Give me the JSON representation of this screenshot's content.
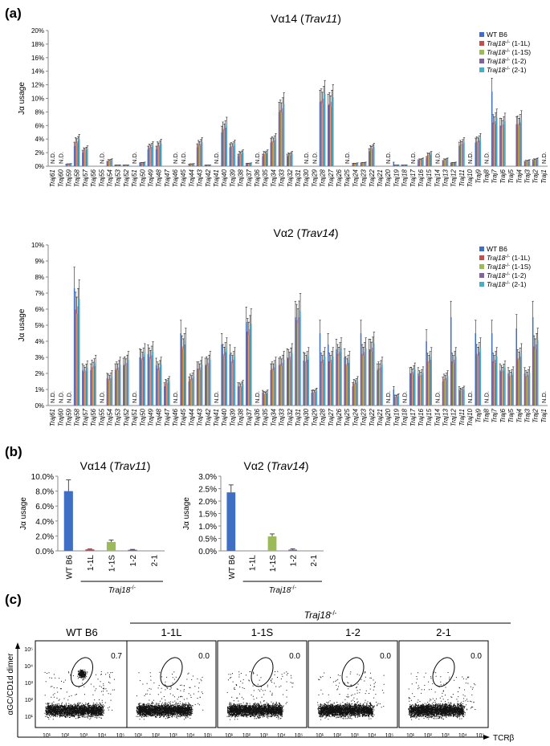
{
  "panel_labels": {
    "a": "(a)",
    "b": "(b)",
    "c": "(c)"
  },
  "colors": {
    "WT B6": "#3f6fc4",
    "1-1L": "#c0504d",
    "1-1S": "#9bbb59",
    "1-2": "#8064a2",
    "2-1": "#4bacc6"
  },
  "chart_data": [
    {
      "id": "a1",
      "type": "bar",
      "title": "Vα14 (Trav11)",
      "title_main": "Vα14 (",
      "title_italic": "Trav11",
      "title_tail": ")",
      "ylabel": "Jα usage",
      "ylim": [
        0,
        20
      ],
      "yticks": [
        "0%",
        "2%",
        "4%",
        "6%",
        "8%",
        "10%",
        "12%",
        "14%",
        "16%",
        "18%",
        "20%"
      ],
      "legend": [
        "WT B6",
        "Traj18-/- (1-1L)",
        "Traj18-/- (1-1S)",
        "Traj18-/- (1-2)",
        "Traj18-/- (2-1)"
      ],
      "legend_parts": [
        {
          "italic": "WT B6",
          "tail": ""
        },
        {
          "italic": "Traj18",
          "sup": "-/-",
          "tail": " (1-1L)"
        },
        {
          "italic": "Traj18",
          "sup": "-/-",
          "tail": " (1-1S)"
        },
        {
          "italic": "Traj18",
          "sup": "-/-",
          "tail": " (1-2)"
        },
        {
          "italic": "Traj18",
          "sup": "-/-",
          "tail": " (2-1)"
        }
      ],
      "categories": [
        "Traj61",
        "Traj60",
        "Traj59",
        "Traj58",
        "Traj57",
        "Traj56",
        "Traj55",
        "Traj54",
        "Traj53",
        "Traj52",
        "Traj51",
        "Traj50",
        "Traj49",
        "Traj48",
        "Traj47",
        "Traj46",
        "Traj45",
        "Traj44",
        "Traj43",
        "Traj42",
        "Traj41",
        "Traj40",
        "Traj39",
        "Traj38",
        "Traj37",
        "Traj36",
        "Traj35",
        "Traj34",
        "Traj33",
        "Traj32",
        "Traj31",
        "Traj30",
        "Traj29",
        "Traj28",
        "Traj27",
        "Traj26",
        "Traj25",
        "Traj24",
        "Traj23",
        "Traj22",
        "Traj21",
        "Traj20",
        "Traj19",
        "Traj18",
        "Traj17",
        "Traj16",
        "Traj15",
        "Traj14",
        "Traj13",
        "Traj12",
        "Traj11",
        "Traj10",
        "Traj9",
        "Traj8",
        "Traj7",
        "Traj6",
        "Traj5",
        "Traj4",
        "Traj3",
        "Traj2",
        "Traj1"
      ],
      "nd_label": "N.D.",
      "nd": [
        "Traj61",
        "Traj60",
        "Traj55",
        "Traj51",
        "Traj46",
        "Traj45",
        "Traj41",
        "Traj36",
        "Traj30",
        "Traj29",
        "Traj25",
        "Traj20",
        "Traj17",
        "Traj14",
        "Traj10",
        "Traj8",
        "Traj1"
      ],
      "group_values": [
        0,
        0,
        0.3,
        3.9,
        2.5,
        0,
        0.1,
        0.9,
        0.1,
        0.1,
        3.5,
        0.5,
        3.0,
        3.3,
        0,
        0,
        0.1,
        0.3,
        3.5,
        0.1,
        1.2,
        6.0,
        3.2,
        2.0,
        0.4,
        0,
        2.0,
        4.0,
        9.0,
        1.8,
        0,
        0,
        0.9,
        10.5,
        10.0,
        0,
        0.2,
        0.4,
        0.5,
        2.8,
        0,
        0.1,
        0.1,
        0.1,
        0.1,
        1.0,
        1.8,
        0,
        1.0,
        0.5,
        3.5,
        0,
        4.0,
        0,
        7.0,
        6.5,
        0,
        6.8,
        0.8,
        1.0,
        0
      ],
      "series": [
        {
          "name": "WT B6",
          "values": [
            0,
            0,
            0.2,
            3.0,
            2.0,
            0,
            0.1,
            0.6,
            0.1,
            0.1,
            2.5,
            0.4,
            2.5,
            2.5,
            0,
            0,
            0.1,
            0.2,
            2.8,
            0.1,
            0.8,
            5.0,
            2.8,
            1.5,
            0.3,
            0,
            1.5,
            3.5,
            8.0,
            1.5,
            0,
            0,
            0.7,
            9.5,
            9.0,
            0,
            0.2,
            0.3,
            0.4,
            2.2,
            0,
            0.1,
            0.5,
            0.1,
            0.1,
            0.8,
            1.2,
            0,
            0.7,
            0.4,
            3.0,
            0,
            3.5,
            0,
            11.0,
            6.0,
            0,
            6.2,
            0.6,
            0.8,
            0
          ]
        }
      ]
    },
    {
      "id": "a2",
      "type": "bar",
      "title": "Vα2 (Trav14)",
      "title_main": "Vα2 (",
      "title_italic": "Trav14",
      "title_tail": ")",
      "ylabel": "Jα usage",
      "ylim": [
        0,
        10
      ],
      "yticks": [
        "0%",
        "1%",
        "2%",
        "3%",
        "4%",
        "5%",
        "6%",
        "7%",
        "8%",
        "9%",
        "10%"
      ],
      "legend": [
        "WT B6",
        "Traj18-/- (1-1L)",
        "Traj18-/- (1-1S)",
        "Traj18-/- (1-2)",
        "Traj18-/- (2-1)"
      ],
      "legend_parts": [
        {
          "italic": "WT B6",
          "tail": ""
        },
        {
          "italic": "Traj18",
          "sup": "-/-",
          "tail": " (1-1L)"
        },
        {
          "italic": "Traj18",
          "sup": "-/-",
          "tail": " (1-1S)"
        },
        {
          "italic": "Traj18",
          "sup": "-/-",
          "tail": " (1-2)"
        },
        {
          "italic": "Traj18",
          "sup": "-/-",
          "tail": " (2-1)"
        }
      ],
      "categories": [
        "Traj61",
        "Traj60",
        "Traj59",
        "Traj58",
        "Traj57",
        "Traj56",
        "Traj55",
        "Traj54",
        "Traj53",
        "Traj52",
        "Traj51",
        "Traj50",
        "Traj49",
        "Traj48",
        "Traj47",
        "Traj46",
        "Traj45",
        "Traj44",
        "Traj43",
        "Traj42",
        "Traj41",
        "Traj40",
        "Traj39",
        "Traj38",
        "Traj37",
        "Traj36",
        "Traj35",
        "Traj34",
        "Traj33",
        "Traj32",
        "Traj31",
        "Traj30",
        "Traj29",
        "Traj28",
        "Traj27",
        "Traj26",
        "Traj25",
        "Traj24",
        "Traj23",
        "Traj22",
        "Traj21",
        "Traj20",
        "Traj19",
        "Traj18",
        "Traj17",
        "Traj16",
        "Traj15",
        "Traj14",
        "Traj13",
        "Traj12",
        "Traj11",
        "Traj10",
        "Traj9",
        "Traj8",
        "Traj7",
        "Traj6",
        "Traj5",
        "Traj4",
        "Traj3",
        "Traj2",
        "Traj1"
      ],
      "nd_label": "N.D.",
      "nd": [
        "Traj61",
        "Traj60",
        "Traj59",
        "Traj55",
        "Traj51",
        "Traj46",
        "Traj41",
        "Traj36",
        "Traj20",
        "Traj18",
        "Traj14",
        "Traj10",
        "Traj8",
        "Traj1"
      ],
      "group_values": [
        0,
        0,
        0,
        6.5,
        2.3,
        2.6,
        0,
        1.8,
        2.5,
        2.8,
        0,
        3.2,
        3.3,
        2.5,
        1.5,
        2.2,
        4.0,
        1.8,
        2.5,
        2.8,
        0,
        3.5,
        3.0,
        1.3,
        5.0,
        0,
        0.8,
        2.5,
        2.8,
        3.2,
        5.8,
        3.0,
        0.9,
        3.0,
        3.0,
        3.5,
        2.8,
        1.5,
        3.5,
        3.8,
        2.5,
        0,
        0.6,
        0,
        2.2,
        2.0,
        3.0,
        0,
        1.8,
        3.0,
        1.0,
        0,
        3.5,
        0,
        3.0,
        2.3,
        2.0,
        3.2,
        2.0,
        4.0,
        0
      ],
      "series": [
        {
          "name": "WT B6",
          "values": [
            0,
            0,
            0,
            7.3,
            2.2,
            2.2,
            0,
            1.7,
            2.2,
            2.5,
            0,
            3.0,
            3.2,
            2.5,
            1.2,
            2.0,
            4.5,
            1.5,
            2.3,
            2.5,
            0,
            3.8,
            3.2,
            1.2,
            5.2,
            0,
            0.8,
            2.2,
            2.5,
            3.0,
            5.5,
            2.8,
            0.8,
            4.5,
            3.8,
            3.5,
            3.0,
            1.2,
            4.5,
            3.5,
            2.2,
            0,
            1.0,
            0,
            2.0,
            2.0,
            4.0,
            0,
            1.5,
            5.5,
            1.0,
            0,
            4.5,
            0,
            4.5,
            2.2,
            2.0,
            4.8,
            2.0,
            5.5,
            0
          ]
        }
      ]
    },
    {
      "id": "b1",
      "type": "bar",
      "title": "Vα14 (Trav11)",
      "title_main": "Vα14 (",
      "title_italic": "Trav11",
      "title_tail": ")",
      "ylabel": "Jα usage",
      "ylim": [
        0,
        10
      ],
      "yticks": [
        "0.0%",
        "2.0%",
        "4.0%",
        "6.0%",
        "8.0%",
        "10.0%"
      ],
      "categories": [
        "WT B6",
        "1-1L",
        "1-1S",
        "1-2",
        "2-1"
      ],
      "group_label": "Traj18-/-",
      "values": [
        8.0,
        0.2,
        1.2,
        0.15,
        0.0
      ],
      "errors": [
        1.5,
        0.05,
        0.25,
        0.05,
        0.0
      ]
    },
    {
      "id": "b2",
      "type": "bar",
      "title": "Vα2 (Trav14)",
      "title_main": "Vα2 (",
      "title_italic": "Trav14",
      "title_tail": ")",
      "ylabel": "Jα usage",
      "ylim": [
        0,
        3
      ],
      "yticks": [
        "0.0%",
        "0.5%",
        "1.0%",
        "1.5%",
        "2.0%",
        "2.5%",
        "3.0%"
      ],
      "categories": [
        "WT B6",
        "1-1L",
        "1-1S",
        "1-2",
        "2-1"
      ],
      "group_label": "Traj18-/-",
      "values": [
        2.35,
        0.0,
        0.58,
        0.05,
        0.0
      ],
      "errors": [
        0.3,
        0.0,
        0.1,
        0.03,
        0.0
      ]
    },
    {
      "id": "c",
      "type": "scatter",
      "group_label": "Traj18-/-",
      "xlabel": "TCRβ",
      "ylabel": "αGC/CD1d dimer",
      "axis_ticks": [
        "10¹",
        "10²",
        "10³",
        "10⁴",
        "10⁵"
      ],
      "panels": [
        {
          "name": "WT B6",
          "percent": "0.7"
        },
        {
          "name": "1-1L",
          "percent": "0.0"
        },
        {
          "name": "1-1S",
          "percent": "0.0"
        },
        {
          "name": "1-2",
          "percent": "0.0"
        },
        {
          "name": "2-1",
          "percent": "0.0"
        }
      ]
    }
  ]
}
